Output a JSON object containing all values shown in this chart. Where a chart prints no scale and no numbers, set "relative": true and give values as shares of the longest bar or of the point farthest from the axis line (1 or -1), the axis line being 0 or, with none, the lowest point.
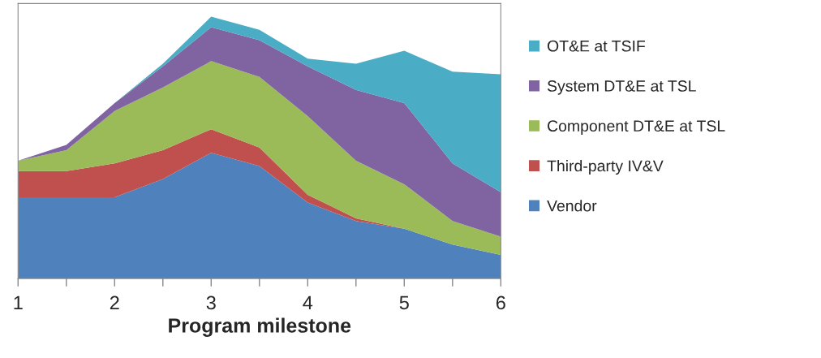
{
  "chart_data": {
    "type": "area",
    "stacked": true,
    "relative": true,
    "xlabel": "Program milestone",
    "x": [
      1,
      1.5,
      2,
      2.5,
      3,
      3.5,
      4,
      4.5,
      5,
      5.5,
      6
    ],
    "xlim": [
      1,
      6
    ],
    "xticks": [
      1,
      {
        "value": 1.5,
        "label": null
      },
      2,
      {
        "value": 2.5,
        "label": null
      },
      3,
      {
        "value": 3.5,
        "label": null
      },
      4,
      {
        "value": 4.5,
        "label": null
      },
      5,
      {
        "value": 5.5,
        "label": null
      },
      6
    ],
    "legend": "right",
    "grid": false,
    "series": [
      {
        "name": "Vendor",
        "color": "#4f81bd",
        "values": [
          0.31,
          0.31,
          0.31,
          0.38,
          0.48,
          0.43,
          0.29,
          0.22,
          0.19,
          0.13,
          0.09
        ]
      },
      {
        "name": "Third-party IV&V",
        "color": "#c0504d",
        "values": [
          0.1,
          0.1,
          0.13,
          0.11,
          0.09,
          0.07,
          0.03,
          0.01,
          0,
          0,
          0
        ]
      },
      {
        "name": "Component DT&E at TSL",
        "color": "#9bbb59",
        "values": [
          0.04,
          0.08,
          0.2,
          0.24,
          0.26,
          0.27,
          0.3,
          0.22,
          0.17,
          0.09,
          0.07
        ]
      },
      {
        "name": "System DT&E at TSL",
        "color": "#8064a2",
        "values": [
          0,
          0.02,
          0.03,
          0.08,
          0.13,
          0.14,
          0.19,
          0.27,
          0.31,
          0.22,
          0.17
        ]
      },
      {
        "name": "OT&E at TSIF",
        "color": "#4bacc6",
        "values": [
          0,
          0,
          0,
          0.01,
          0.04,
          0.04,
          0.03,
          0.1,
          0.2,
          0.35,
          0.45
        ]
      }
    ]
  }
}
